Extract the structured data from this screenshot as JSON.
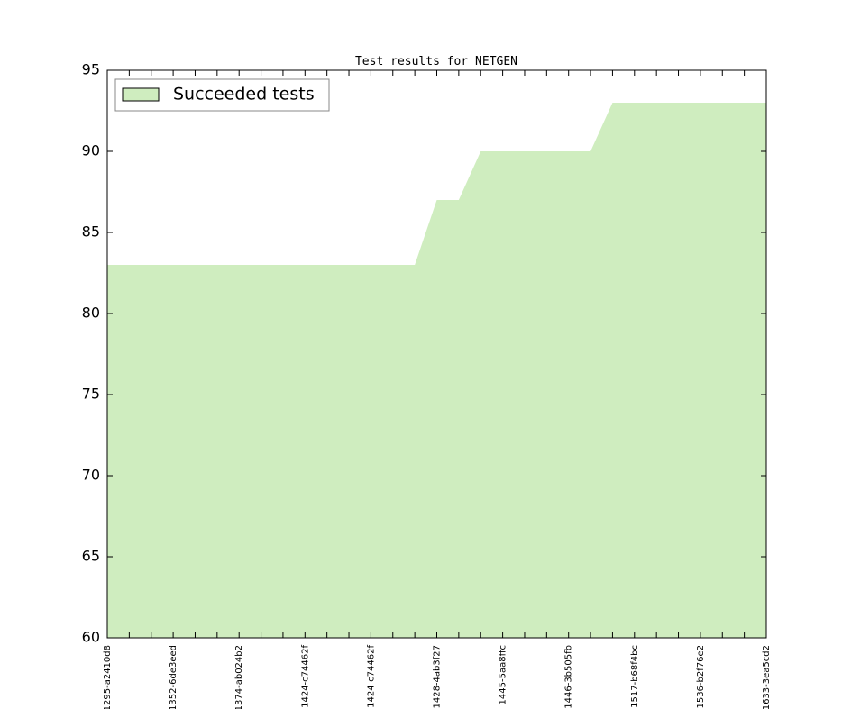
{
  "chart_data": {
    "type": "area",
    "title": "Test results for NETGEN",
    "categories": [
      "1295-a2410d8",
      null,
      null,
      "1352-6de3eed",
      null,
      null,
      "1374-ab024b2",
      null,
      null,
      "1424-c74462f",
      null,
      null,
      "1424-c74462f",
      null,
      null,
      "1428-4ab3f27",
      null,
      null,
      "1445-5aa8ffc",
      null,
      null,
      "1446-3b505fb",
      null,
      null,
      "1517-b68f4bc",
      null,
      null,
      "1536-b2f76e2",
      null,
      null,
      "1633-3ea5cd2"
    ],
    "series": [
      {
        "name": "Succeeded tests",
        "color": "#cfedbf",
        "values": [
          83,
          83,
          83,
          83,
          83,
          83,
          83,
          83,
          83,
          83,
          83,
          83,
          83,
          83,
          83,
          87,
          87,
          90,
          90,
          90,
          90,
          90,
          90,
          93,
          93,
          93,
          93,
          93,
          93,
          93,
          93
        ]
      }
    ],
    "ylim": [
      60,
      95
    ],
    "yticks": [
      60,
      65,
      70,
      75,
      80,
      85,
      90,
      95
    ],
    "legend": "upper left",
    "grid": false
  }
}
